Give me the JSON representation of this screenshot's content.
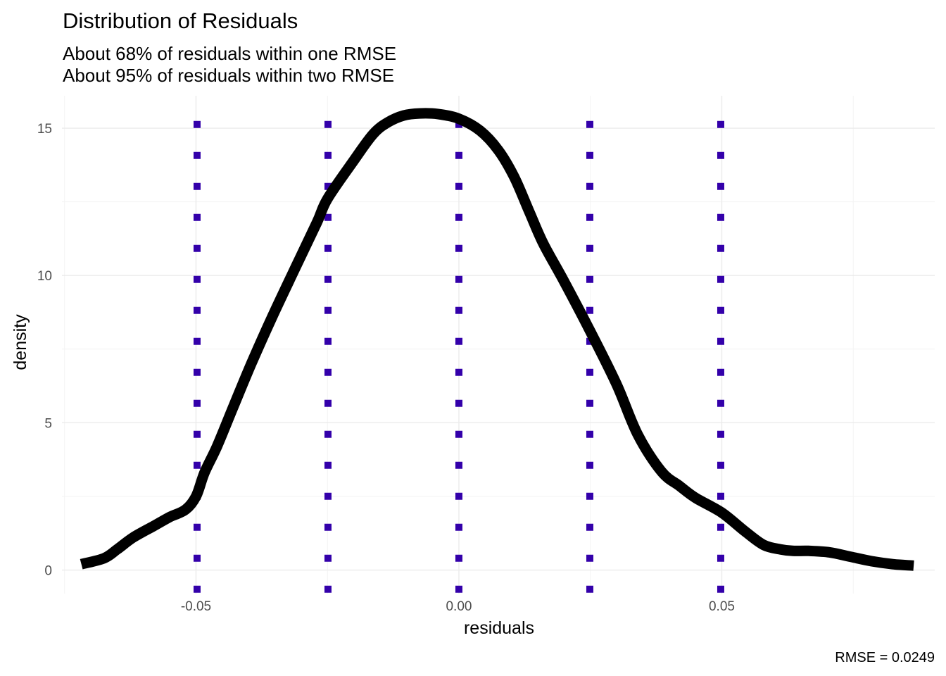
{
  "chart_data": {
    "type": "line",
    "title": "Distribution of Residuals",
    "subtitle_lines": [
      "About 68% of residuals within one RMSE",
      "About 95% of residuals within two RMSE"
    ],
    "xlabel": "residuals",
    "ylabel": "density",
    "caption": "RMSE =  0.0249",
    "xlim": [
      -0.0755,
      0.0905
    ],
    "ylim": [
      -0.8,
      16.1
    ],
    "x_major_ticks": [
      -0.05,
      0.0,
      0.05
    ],
    "x_tick_labels": [
      "-0.05",
      "0.00",
      "0.05"
    ],
    "x_minor_ticks": [
      -0.075,
      -0.025,
      0.025,
      0.075
    ],
    "y_major_ticks": [
      0,
      5,
      10,
      15
    ],
    "y_tick_labels": [
      "0",
      "5",
      "10",
      "15"
    ],
    "y_minor_ticks": [
      2.5,
      7.5,
      12.5
    ],
    "series": [
      {
        "name": "density",
        "color": "#000000",
        "x": [
          -0.0718,
          -0.0675,
          -0.065,
          -0.062,
          -0.058,
          -0.055,
          -0.052,
          -0.05,
          -0.0484,
          -0.046,
          -0.043,
          -0.0395,
          -0.0355,
          -0.031,
          -0.027,
          -0.025,
          -0.02,
          -0.0163,
          -0.0135,
          -0.0105,
          -0.0075,
          -0.004,
          0.0,
          0.004,
          0.0075,
          0.0105,
          0.0133,
          0.016,
          0.02,
          0.025,
          0.03,
          0.034,
          0.0385,
          0.042,
          0.045,
          0.05,
          0.0545,
          0.058,
          0.0612,
          0.0635,
          0.0665,
          0.0705,
          0.0745,
          0.0785,
          0.0825,
          0.0865
        ],
        "y": [
          0.2,
          0.4,
          0.7,
          1.1,
          1.5,
          1.8,
          2.05,
          2.5,
          3.3,
          4.2,
          5.5,
          7.0,
          8.6,
          10.3,
          11.8,
          12.6,
          13.9,
          14.8,
          15.2,
          15.43,
          15.5,
          15.48,
          15.32,
          14.92,
          14.25,
          13.35,
          12.2,
          11.1,
          9.8,
          8.1,
          6.3,
          4.6,
          3.35,
          2.85,
          2.45,
          1.95,
          1.3,
          0.85,
          0.7,
          0.65,
          0.65,
          0.6,
          0.45,
          0.3,
          0.2,
          0.15
        ]
      }
    ],
    "vlines": [
      {
        "name": "minus-two-rmse",
        "x": -0.0498,
        "color": "#3300aa"
      },
      {
        "name": "minus-one-rmse",
        "x": -0.0249,
        "color": "#3300aa"
      },
      {
        "name": "zero",
        "x": 0.0,
        "color": "#3300aa"
      },
      {
        "name": "plus-one-rmse",
        "x": 0.0249,
        "color": "#3300aa"
      },
      {
        "name": "plus-two-rmse",
        "x": 0.0498,
        "color": "#3300aa"
      }
    ],
    "vline_y_range": [
      -0.65,
      15.5
    ]
  }
}
